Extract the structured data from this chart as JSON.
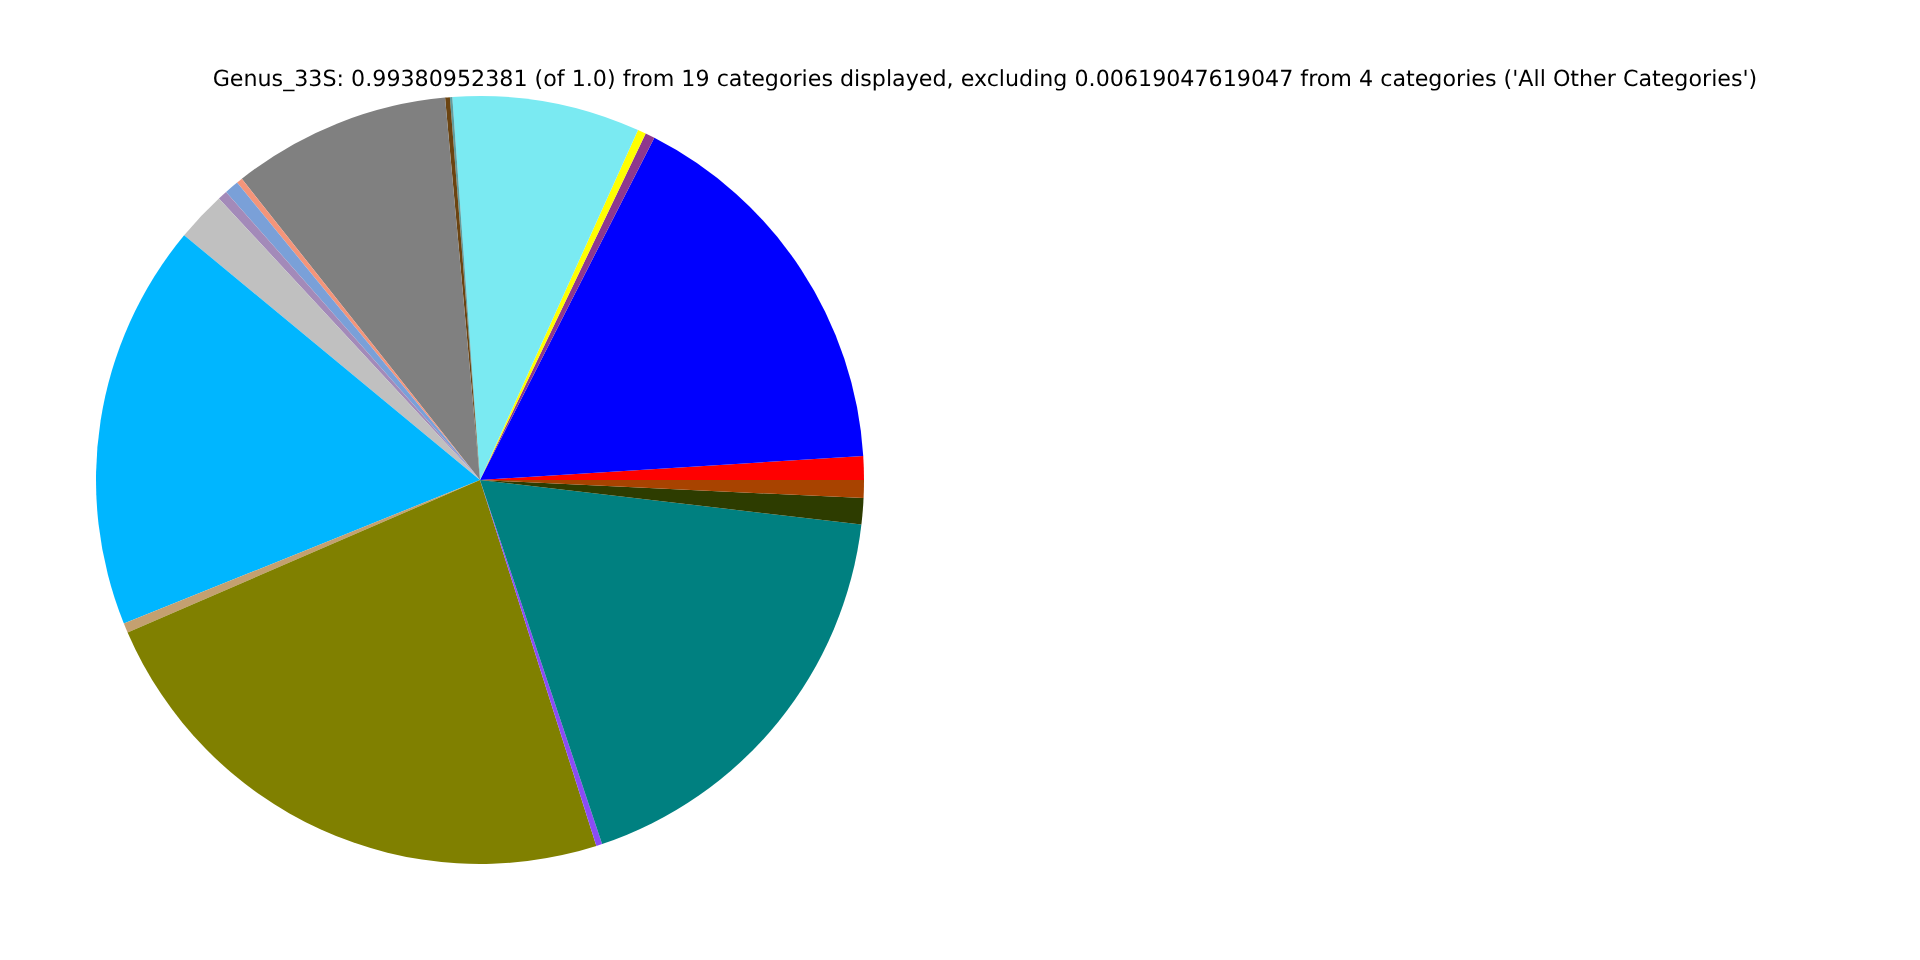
{
  "chart_data": {
    "type": "pie",
    "title": "Genus_33S: 0.99380952381 (of 1.0) from 19 categories displayed, excluding 0.00619047619047 from 4 categories ('All Other Categories')",
    "categories": [
      null,
      null,
      null,
      null,
      null,
      null,
      null,
      null,
      null,
      null,
      null,
      null,
      null,
      null,
      null,
      null,
      null,
      null,
      null
    ],
    "values": [
      1.0,
      16.5,
      0.4,
      0.35,
      7.9,
      0.1,
      0.2,
      9.2,
      0.25,
      0.6,
      0.4,
      2.1,
      17.1,
      0.4,
      23.4,
      0.25,
      18.0,
      1.1,
      0.75
    ],
    "colors": [
      "#ff0000",
      "#0000ff",
      "#8e388e",
      "#ffff00",
      "#7aeaf2",
      "#5f9ea0",
      "#6b4411",
      "#808080",
      "#f4957a",
      "#7aa0d8",
      "#a38ab9",
      "#c0c0c0",
      "#00b6ff",
      "#c4a070",
      "#808000",
      "#8b4cf5",
      "#008080",
      "#2d3c00",
      "#a84300"
    ]
  }
}
